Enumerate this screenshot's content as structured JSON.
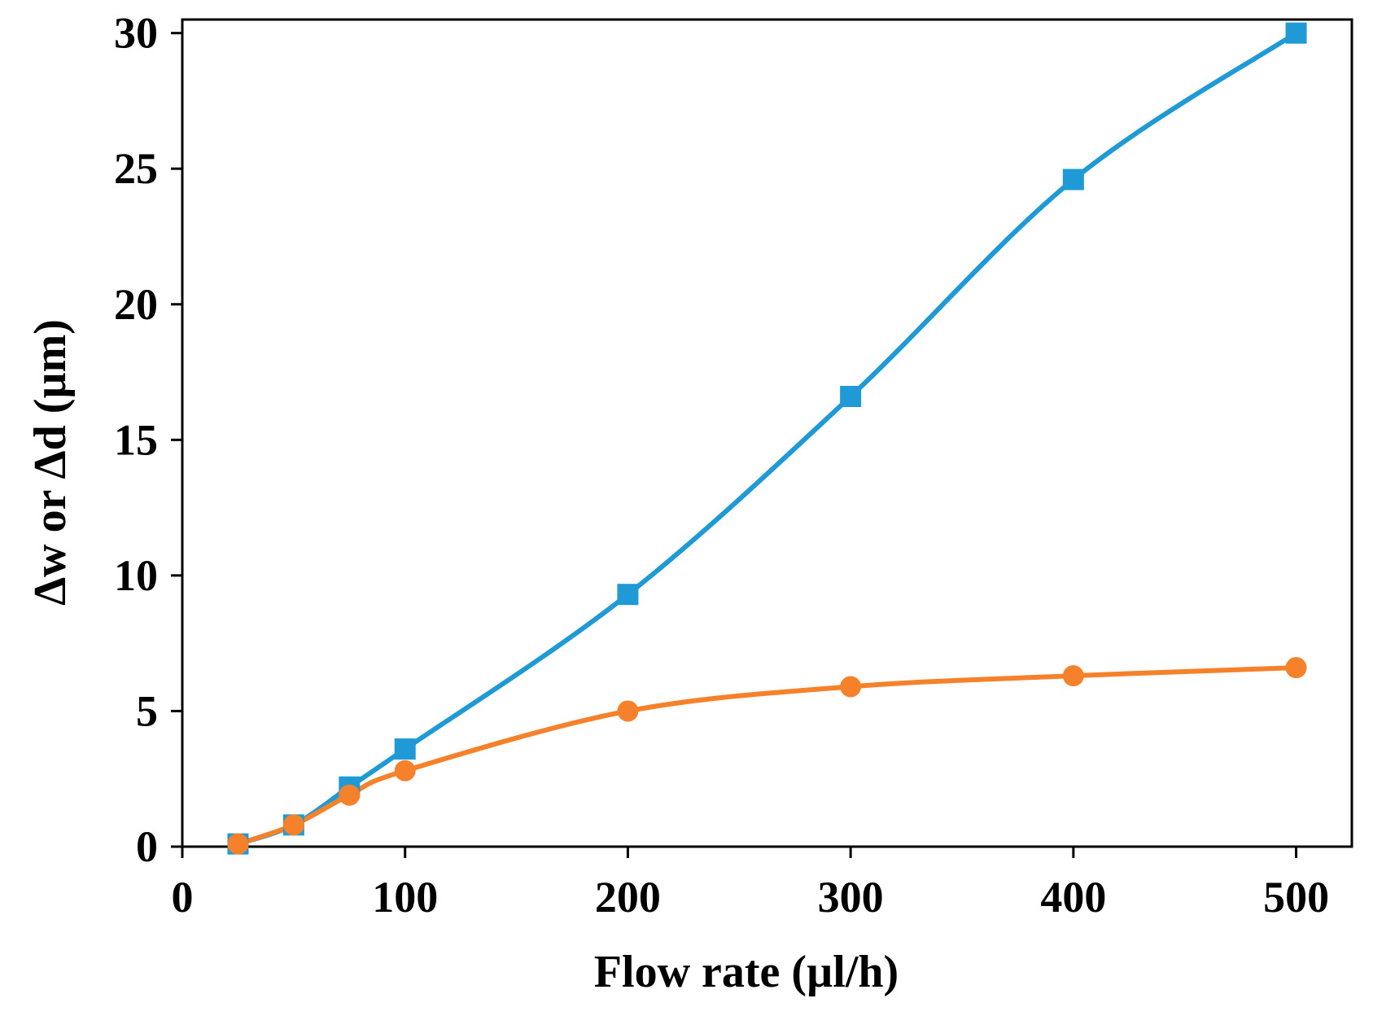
{
  "chart_data": {
    "type": "line",
    "title": "",
    "xlabel": "Flow rate (µl/h)",
    "ylabel": "Δw or Δd (µm)",
    "xlim": [
      0,
      525
    ],
    "ylim": [
      0,
      30.5
    ],
    "xticks": [
      0,
      100,
      200,
      300,
      400,
      500
    ],
    "yticks": [
      0,
      5,
      10,
      15,
      20,
      25,
      30
    ],
    "xtick_labels": [
      "0",
      "100",
      "200",
      "300",
      "400",
      "500"
    ],
    "ytick_labels": [
      "0",
      "5",
      "10",
      "15",
      "20",
      "25",
      "30"
    ],
    "grid": false,
    "legend": "none",
    "smoothed_lines": true,
    "series": [
      {
        "marker": "square",
        "color": "#1f9ad6",
        "x": [
          25,
          50,
          75,
          100,
          200,
          300,
          400,
          500
        ],
        "y": [
          0.1,
          0.8,
          2.2,
          3.6,
          9.3,
          16.6,
          24.6,
          30.0
        ]
      },
      {
        "marker": "circle",
        "color": "#f5822b",
        "x": [
          25,
          50,
          75,
          100,
          200,
          300,
          400,
          500
        ],
        "y": [
          0.1,
          0.8,
          1.9,
          2.8,
          5.0,
          5.9,
          6.3,
          6.6
        ]
      }
    ]
  }
}
